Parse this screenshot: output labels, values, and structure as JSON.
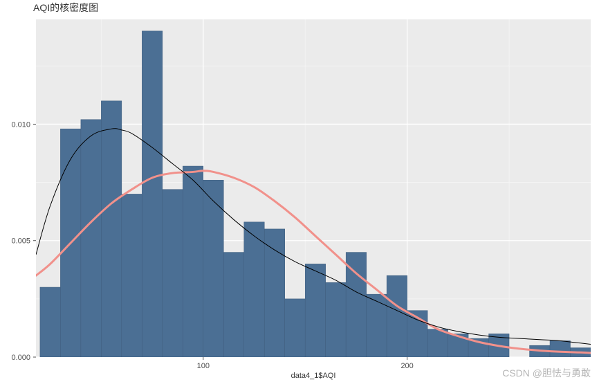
{
  "chart": {
    "type": "histogram+density",
    "title": "AQI的核密度图",
    "title_fontsize": 14,
    "xlabel": "data4_1$AQI",
    "label_fontsize": 11,
    "xlim": [
      18,
      290
    ],
    "ylim": [
      0,
      0.0145
    ],
    "xtick_positions": [
      100,
      200
    ],
    "xtick_labels": [
      "100",
      "200"
    ],
    "ytick_positions": [
      0.0,
      0.005,
      0.01
    ],
    "ytick_labels": [
      "0.000",
      "0.005",
      "0.010"
    ],
    "plot_background_color": "#ebebeb",
    "grid_major_color": "#ffffff",
    "grid_minor_color": "#f5f5f5",
    "outer_background": "#ffffff",
    "tick_color": "#555555",
    "bars": {
      "bin_width": 10,
      "edges": [
        20,
        30,
        40,
        50,
        60,
        70,
        80,
        90,
        100,
        110,
        120,
        130,
        140,
        150,
        160,
        170,
        180,
        190,
        200,
        210,
        220,
        230,
        240,
        250,
        260,
        270,
        280,
        290
      ],
      "densities": [
        0.003,
        0.0098,
        0.0102,
        0.011,
        0.007,
        0.014,
        0.0072,
        0.0082,
        0.0076,
        0.0045,
        0.0058,
        0.0055,
        0.0025,
        0.004,
        0.0032,
        0.0045,
        0.0027,
        0.0035,
        0.002,
        0.0012,
        0.001,
        0.0008,
        0.001,
        0.0,
        0.0005,
        0.0007,
        0.0004
      ],
      "fill_color": "#4b6f94",
      "stroke_color": "#3f5d7d",
      "stroke_width": 0.5
    },
    "density_kde": {
      "x": [
        18,
        25,
        35,
        45,
        55,
        60,
        65,
        75,
        85,
        95,
        105,
        115,
        125,
        135,
        145,
        155,
        165,
        175,
        185,
        195,
        205,
        215,
        225,
        235,
        245,
        255,
        265,
        275,
        285,
        290
      ],
      "y": [
        0.0044,
        0.0065,
        0.0085,
        0.0095,
        0.0098,
        0.00975,
        0.0096,
        0.009,
        0.0083,
        0.0076,
        0.0067,
        0.0059,
        0.0052,
        0.0046,
        0.0041,
        0.0037,
        0.0033,
        0.0028,
        0.0024,
        0.002,
        0.0016,
        0.0013,
        0.0011,
        0.00095,
        0.00085,
        0.0008,
        0.00075,
        0.0007,
        0.0006,
        0.00055
      ],
      "stroke_color": "#000000",
      "stroke_width": 1.0
    },
    "normal_curve": {
      "x": [
        18,
        25,
        35,
        45,
        55,
        65,
        75,
        85,
        95,
        100,
        105,
        115,
        125,
        135,
        145,
        155,
        165,
        175,
        185,
        195,
        205,
        215,
        225,
        235,
        245,
        255,
        265,
        275,
        285,
        290
      ],
      "y": [
        0.0035,
        0.004,
        0.0049,
        0.0058,
        0.0066,
        0.0072,
        0.0077,
        0.0079,
        0.00795,
        0.008,
        0.00795,
        0.0077,
        0.0073,
        0.0067,
        0.006,
        0.0052,
        0.0044,
        0.0036,
        0.0029,
        0.0022,
        0.0017,
        0.0012,
        0.0009,
        0.00065,
        0.00048,
        0.00036,
        0.00028,
        0.00023,
        0.0002,
        0.00018
      ],
      "stroke_color": "#f1918b",
      "stroke_width": 3.0
    }
  },
  "watermark": "CSDN @胆怯与勇敢"
}
